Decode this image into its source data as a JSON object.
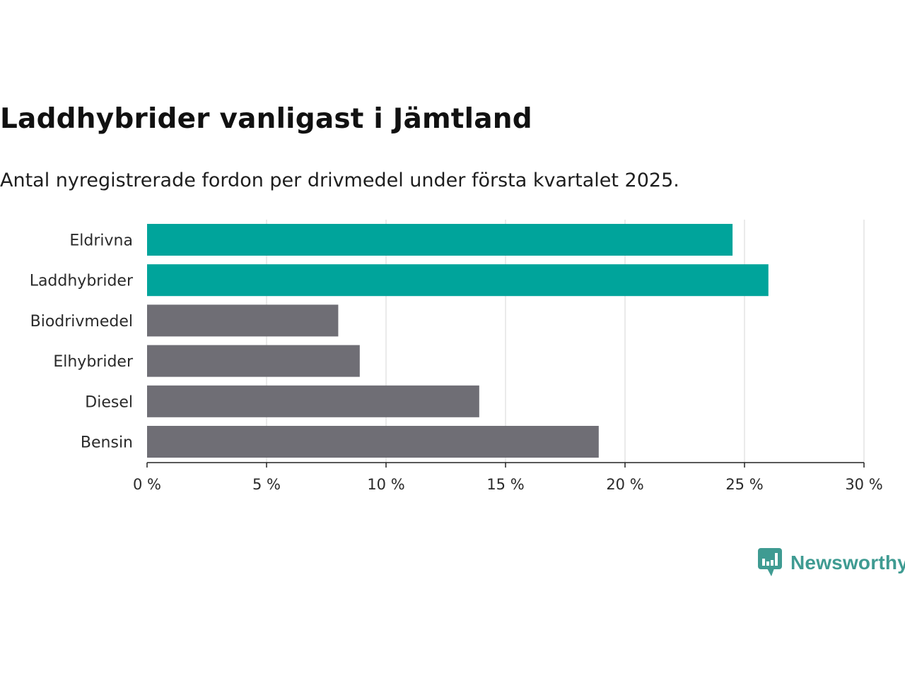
{
  "chart_data": {
    "type": "bar",
    "orientation": "horizontal",
    "title": "Laddhybrider vanligast i Jämtland",
    "subtitle": "Antal nyregistrerade fordon per drivmedel under första kvartalet 2025.",
    "categories": [
      "Eldrivna",
      "Laddhybrider",
      "Biodrivmedel",
      "Elhybrider",
      "Diesel",
      "Bensin"
    ],
    "values": [
      24.5,
      26.0,
      8.0,
      8.9,
      13.9,
      18.9
    ],
    "highlighted": [
      "Eldrivna",
      "Laddhybrider"
    ],
    "colors": {
      "highlight": "#00a49b",
      "default": "#6f6e75",
      "grid": "#dcdcdc",
      "axis": "#222222"
    },
    "xlim": [
      0,
      30
    ],
    "xticks": [
      0,
      5,
      10,
      15,
      20,
      25,
      30
    ],
    "tick_format": "{v} %",
    "grid": true,
    "xlabel": "",
    "ylabel": ""
  },
  "brand": {
    "name": "Newsworthy",
    "icon": "bar-chart-speech-bubble-icon",
    "color": "#3f9b92"
  }
}
